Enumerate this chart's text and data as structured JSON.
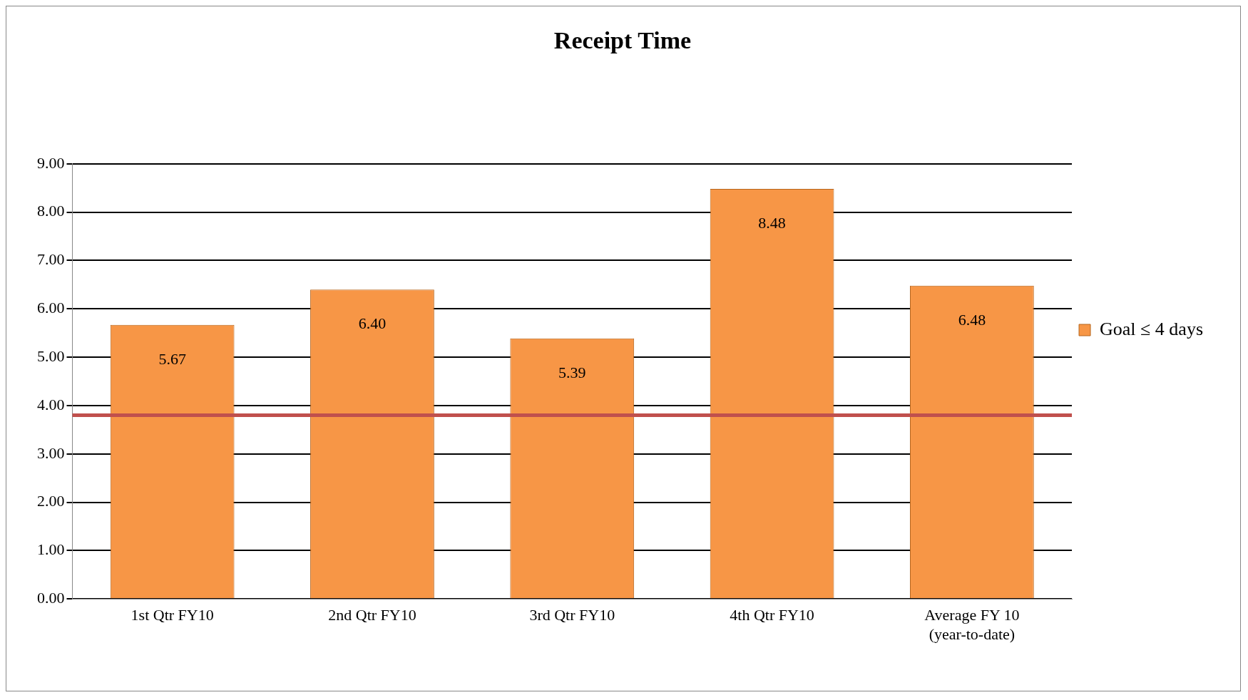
{
  "chart_data": {
    "type": "bar",
    "title": "Receipt Time",
    "categories": [
      "1st Qtr FY10",
      "2nd Qtr FY10",
      "3rd Qtr FY10",
      "4th Qtr FY10",
      "Average FY 10\n(year-to-date)"
    ],
    "series": [
      {
        "name": "Goal ≤ 4 days",
        "color": "#f79646",
        "values": [
          5.67,
          6.4,
          5.39,
          8.48,
          6.48
        ],
        "value_labels": [
          "5.67",
          "6.40",
          "5.39",
          "8.48",
          "6.48"
        ]
      }
    ],
    "ylim": [
      0,
      9
    ],
    "yticks": [
      {
        "value": 0,
        "label": "0.00"
      },
      {
        "value": 1,
        "label": "1.00"
      },
      {
        "value": 2,
        "label": "2.00"
      },
      {
        "value": 3,
        "label": "3.00"
      },
      {
        "value": 4,
        "label": "4.00"
      },
      {
        "value": 5,
        "label": "5.00"
      },
      {
        "value": 6,
        "label": "6.00"
      },
      {
        "value": 7,
        "label": "7.00"
      },
      {
        "value": 8,
        "label": "8.00"
      },
      {
        "value": 9,
        "label": "9.00"
      }
    ],
    "ref_lines": [
      {
        "axis": "y",
        "value": 3.8,
        "color": "#c0504d"
      }
    ],
    "grid": "y",
    "legend": "right"
  }
}
